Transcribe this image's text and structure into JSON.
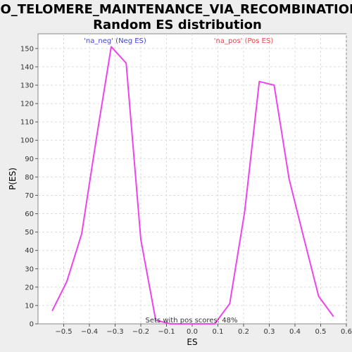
{
  "colors": {
    "background": "#eeeeee",
    "plot_background": "#ffffff",
    "series_line": "#ee44ee",
    "neg_label": "#4444cc",
    "pos_label": "#ee4444",
    "grid": "#dddddd"
  },
  "chart_data": {
    "type": "line",
    "title": "GO_TELOMERE_MAINTENANCE_VIA_RECOMBINATION:",
    "subtitle": "Random ES distribution",
    "xlabel": "ES",
    "ylabel": "P(ES)",
    "xlim": [
      -0.6,
      0.6
    ],
    "ylim": [
      0,
      158
    ],
    "x_ticks": [
      -0.5,
      -0.4,
      -0.3,
      -0.2,
      -0.1,
      0.0,
      0.1,
      0.2,
      0.3,
      0.4,
      0.5,
      0.6
    ],
    "x_tick_labels": [
      "−0.5",
      "−0.4",
      "−0.3",
      "−0.2",
      "−0.1",
      "0.0",
      "0.1",
      "0.2",
      "0.3",
      "0.4",
      "0.5",
      "0.6"
    ],
    "y_ticks": [
      0,
      10,
      20,
      30,
      40,
      50,
      60,
      70,
      80,
      90,
      100,
      110,
      120,
      130,
      140,
      150
    ],
    "grid": true,
    "legend": [
      {
        "label": "'na_neg' (Neg ES)",
        "color": "#4444cc",
        "x": -0.3
      },
      {
        "label": "'na_pos' (Pos ES)",
        "color": "#ee4444",
        "x": 0.2
      }
    ],
    "annotation": "Sets with pos scores: 48%",
    "series": [
      {
        "color": "#ee44ee",
        "x": [
          -0.545,
          -0.488,
          -0.43,
          -0.373,
          -0.315,
          -0.257,
          -0.2,
          -0.142,
          -0.085,
          -0.027,
          0.031,
          0.088,
          0.146,
          0.204,
          0.261,
          0.319,
          0.377,
          0.434,
          0.492,
          0.55
        ],
        "y": [
          7,
          23,
          49,
          101,
          151,
          142,
          46,
          2,
          0,
          0,
          0,
          0,
          11,
          61,
          132,
          130,
          79,
          47,
          15,
          4
        ]
      }
    ]
  }
}
